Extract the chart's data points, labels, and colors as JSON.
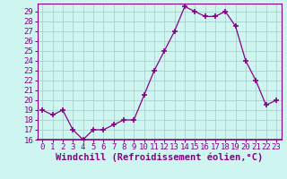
{
  "x": [
    0,
    1,
    2,
    3,
    4,
    5,
    6,
    7,
    8,
    9,
    10,
    11,
    12,
    13,
    14,
    15,
    16,
    17,
    18,
    19,
    20,
    21,
    22,
    23
  ],
  "y": [
    19,
    18.5,
    19,
    17,
    16,
    17,
    17,
    17.5,
    18,
    18,
    20.5,
    23,
    25,
    27,
    29.5,
    29,
    28.5,
    28.5,
    29,
    27.5,
    24,
    22,
    19.5,
    20
  ],
  "line_color": "#880088",
  "marker": "+",
  "marker_size": 4,
  "bg_color": "#cef5f0",
  "grid_color": "#aacfcf",
  "xlabel": "Windchill (Refroidissement éolien,°C)",
  "ylim": [
    16,
    29.8
  ],
  "xlim": [
    -0.5,
    23.5
  ],
  "yticks": [
    16,
    17,
    18,
    19,
    20,
    21,
    22,
    23,
    24,
    25,
    26,
    27,
    28,
    29
  ],
  "xticks": [
    0,
    1,
    2,
    3,
    4,
    5,
    6,
    7,
    8,
    9,
    10,
    11,
    12,
    13,
    14,
    15,
    16,
    17,
    18,
    19,
    20,
    21,
    22,
    23
  ],
  "tick_label_fontsize": 6.5,
  "xlabel_fontsize": 7.5,
  "xlabel_fontweight": "bold"
}
